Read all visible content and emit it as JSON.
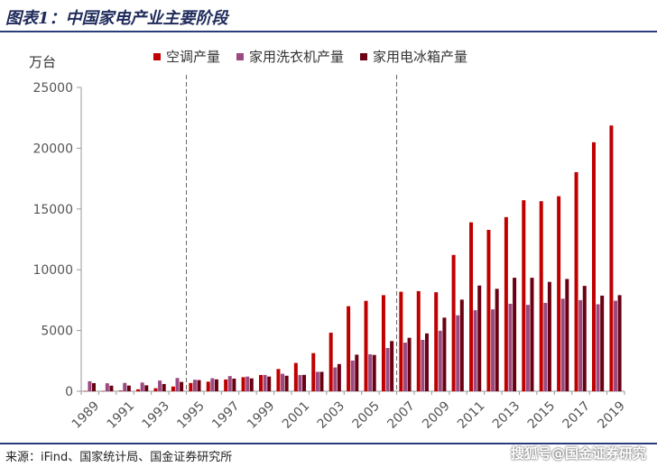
{
  "title": "图表1：中国家电产业主要阶段",
  "source": "来源：iFind、国家统计局、国金证券研究所",
  "watermark": "搜狐号@国金证券研究",
  "colors": {
    "title": "#1f2b5b",
    "rule": "#2a3d7a",
    "axis_text": "#555555"
  },
  "chart_data": {
    "type": "bar",
    "ylabel": "万台",
    "ylim": [
      0,
      25000
    ],
    "yticks": [
      0,
      5000,
      10000,
      15000,
      20000,
      25000
    ],
    "grid": false,
    "legend_position": "top",
    "x": [
      1989,
      1990,
      1991,
      1992,
      1993,
      1994,
      1995,
      1996,
      1997,
      1998,
      1999,
      2000,
      2001,
      2002,
      2003,
      2004,
      2005,
      2006,
      2007,
      2008,
      2009,
      2010,
      2011,
      2012,
      2013,
      2014,
      2015,
      2016,
      2017,
      2018,
      2019
    ],
    "xtick_labels": [
      "1989",
      "1991",
      "1993",
      "1995",
      "1997",
      "1999",
      "2001",
      "2003",
      "2005",
      "2007",
      "2009",
      "2011",
      "2013",
      "2015",
      "2017",
      "2019"
    ],
    "series": [
      {
        "name": "空调产量",
        "color": "#c00000",
        "values": [
          20,
          25,
          60,
          160,
          250,
          390,
          680,
          790,
          970,
          1160,
          1340,
          1830,
          2330,
          3140,
          4820,
          7000,
          7440,
          7910,
          8190,
          8240,
          8150,
          11220,
          13900,
          13280,
          14330,
          15720,
          15640,
          16050,
          18030,
          20490,
          21870
        ]
      },
      {
        "name": "家用洗衣机产量",
        "color": "#9a4a80",
        "values": [
          825,
          660,
          690,
          720,
          880,
          1090,
          950,
          1070,
          1250,
          1210,
          1340,
          1440,
          1340,
          1600,
          1960,
          2530,
          3040,
          3560,
          4000,
          4230,
          4980,
          6250,
          6670,
          6740,
          7200,
          7110,
          7270,
          7620,
          7500,
          7160,
          7450
        ]
      },
      {
        "name": "家用电冰箱产量",
        "color": "#6b0012",
        "values": [
          670,
          460,
          470,
          490,
          600,
          770,
          920,
          980,
          1040,
          1060,
          1210,
          1280,
          1350,
          1600,
          2240,
          3010,
          2990,
          4130,
          4400,
          4760,
          6060,
          7540,
          8700,
          8430,
          9340,
          9340,
          9000,
          9240,
          8670,
          7870,
          7910
        ]
      }
    ],
    "annotations": [
      {
        "type": "vline",
        "between": [
          1994,
          1995
        ],
        "style": "dashed"
      },
      {
        "type": "vline",
        "between": [
          2006,
          2007
        ],
        "style": "dashed"
      }
    ]
  }
}
